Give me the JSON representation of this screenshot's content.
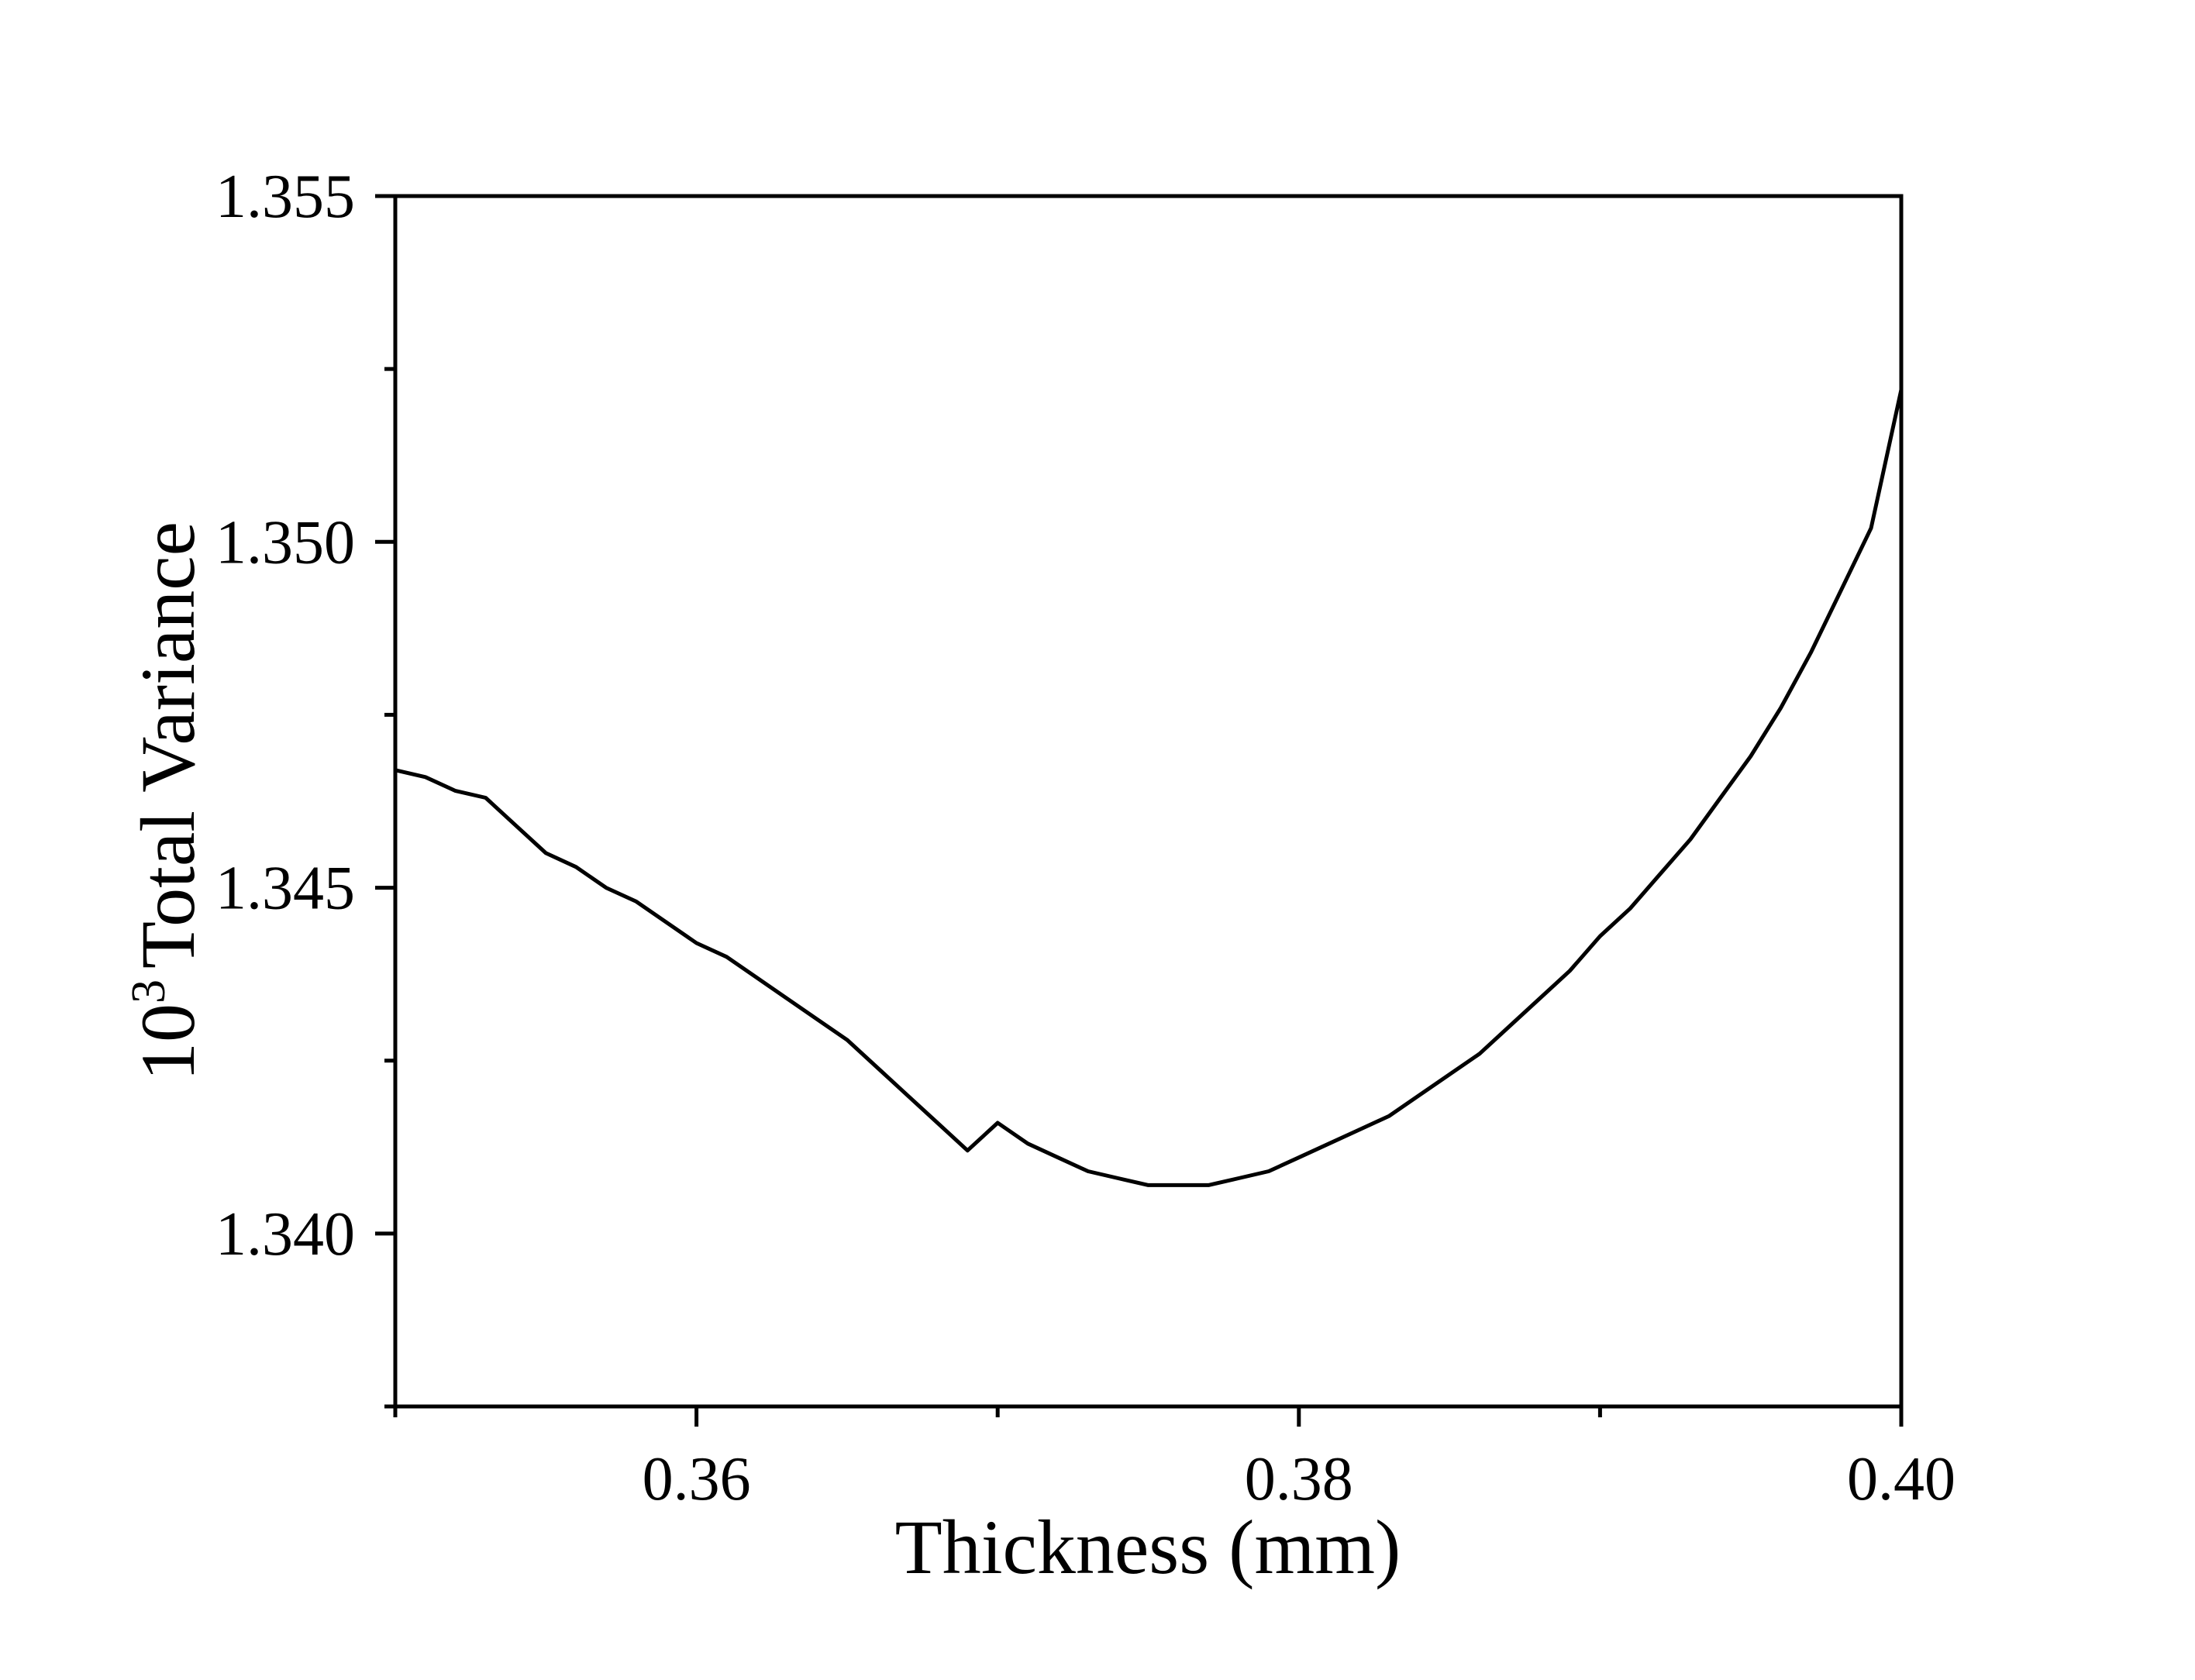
{
  "chart_data": {
    "type": "line",
    "xlabel": "Thickness (mm)",
    "ylabel": {
      "prefix": "10",
      "exponent": "3",
      "text": "Total Variance"
    },
    "xlim": [
      0.35,
      0.4
    ],
    "ylim": [
      1.3375,
      1.355
    ],
    "x_ticks": [
      0.36,
      0.38,
      0.4
    ],
    "x_tick_labels": [
      "0.36",
      "0.38",
      "0.40"
    ],
    "x_minor_ticks": [
      0.35,
      0.37,
      0.39
    ],
    "y_ticks": [
      1.34,
      1.345,
      1.35,
      1.355
    ],
    "y_tick_labels": [
      "1.340",
      "1.345",
      "1.350",
      "1.355"
    ],
    "y_minor_ticks": [
      1.3375,
      1.3425,
      1.3475,
      1.3525
    ],
    "grid": false,
    "line_color": "#000000",
    "series": [
      {
        "x": [
          0.35,
          0.351,
          0.352,
          0.353,
          0.354,
          0.355,
          0.356,
          0.357,
          0.358,
          0.359,
          0.36,
          0.361,
          0.362,
          0.363,
          0.364,
          0.365,
          0.366,
          0.367,
          0.368,
          0.369,
          0.37,
          0.371,
          0.372,
          0.373,
          0.374,
          0.375,
          0.376,
          0.377,
          0.378,
          0.379,
          0.38,
          0.381,
          0.382,
          0.383,
          0.384,
          0.385,
          0.386,
          0.387,
          0.388,
          0.389,
          0.39,
          0.391,
          0.392,
          0.393,
          0.394,
          0.395,
          0.396,
          0.397,
          0.398,
          0.399,
          0.4
        ],
        "y": [
          1.3467,
          1.3466,
          1.3464,
          1.3463,
          1.3459,
          1.3455,
          1.3453,
          1.345,
          1.3448,
          1.3445,
          1.3442,
          1.344,
          1.3437,
          1.3434,
          1.3431,
          1.3428,
          1.3424,
          1.342,
          1.3416,
          1.3412,
          1.3416,
          1.3413,
          1.3411,
          1.3409,
          1.3408,
          1.3407,
          1.3407,
          1.3407,
          1.3408,
          1.3409,
          1.3411,
          1.3413,
          1.3415,
          1.3417,
          1.342,
          1.3423,
          1.3426,
          1.343,
          1.3434,
          1.3438,
          1.3443,
          1.3447,
          1.3452,
          1.3457,
          1.3463,
          1.3469,
          1.3476,
          1.3484,
          1.3493,
          1.3502,
          1.3522
        ]
      }
    ]
  }
}
